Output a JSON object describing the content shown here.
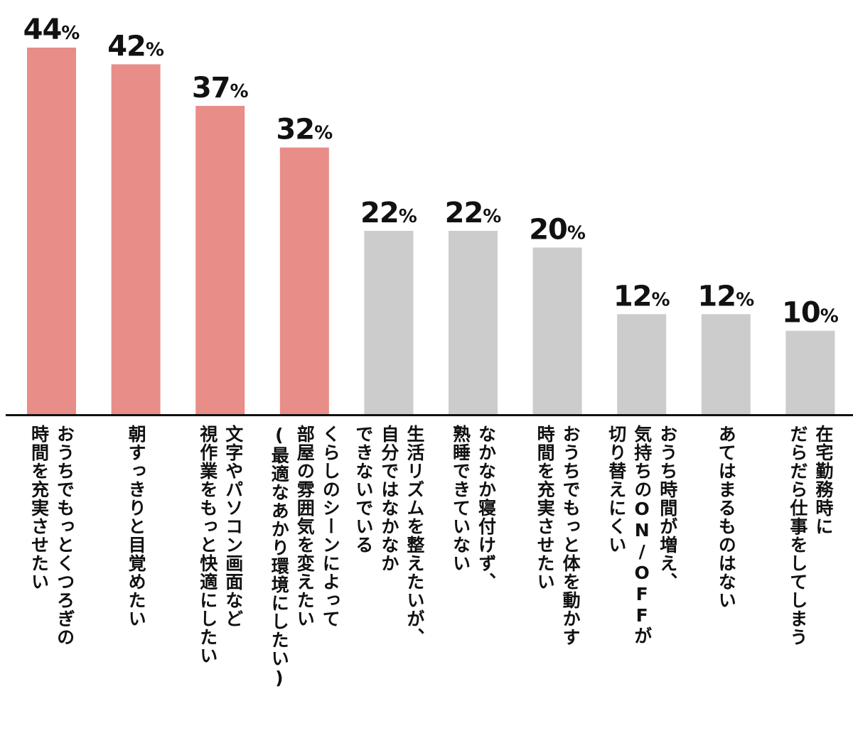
{
  "chart_data": {
    "type": "bar",
    "categories": [
      "おうちでもっとくつろぎの\n時間を充実させたい",
      "朝すっきりと目覚めたい",
      "文字やパソコン画面など\n視作業をもっと快適にしたい",
      "くらしのシーンによって\n部屋の雰囲気を変えたい\n(最適なあかり環境にしたい)",
      "生活リズムを整えたいが、\n自分ではなかなか\nできないでいる",
      "なかなか寝付けず、\n熟睡できていない",
      "おうちでもっと体を動かす\n時間を充実させたい",
      "おうち時間が増え、\n気持ちのON/OFFが\n切り替えにくい",
      "あてはまるものはない",
      "在宅勤務時に\nだらだら仕事をしてしまう"
    ],
    "values": [
      44,
      42,
      37,
      32,
      22,
      22,
      20,
      12,
      12,
      10
    ],
    "value_labels": [
      "44",
      "42",
      "37",
      "32",
      "22",
      "22",
      "20",
      "12",
      "12",
      "10"
    ],
    "unit": "%",
    "highlight_count": 4,
    "colors": {
      "highlight": "#e88d88",
      "normal": "#cccccc",
      "axis": "#111111",
      "text": "#111111"
    },
    "title": "",
    "xlabel": "",
    "ylabel": "",
    "ylim": [
      0,
      44
    ],
    "grid": false,
    "legend": "none"
  }
}
